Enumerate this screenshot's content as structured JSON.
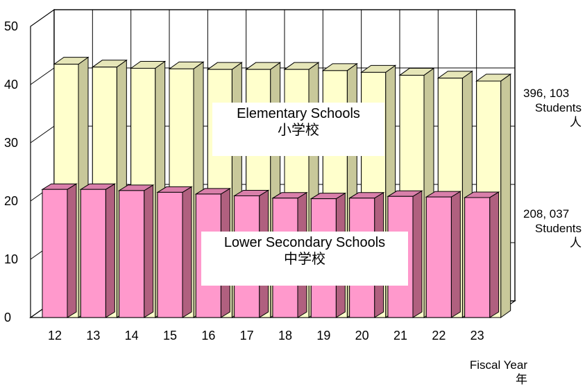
{
  "chart_data": {
    "type": "bar",
    "categories": [
      "12",
      "13",
      "14",
      "15",
      "16",
      "17",
      "18",
      "19",
      "20",
      "21",
      "22",
      "23"
    ],
    "series": [
      {
        "name": "Elementary Schools 小学校",
        "color": "#FFFFCC",
        "values": [
          43.5,
          43.0,
          42.8,
          42.7,
          42.6,
          42.6,
          42.6,
          42.4,
          42.1,
          41.6,
          41.1,
          40.6
        ]
      },
      {
        "name": "Lower Secondary Schools 中学校",
        "color": "#FF99CC",
        "values": [
          22.0,
          22.0,
          21.8,
          21.5,
          21.2,
          20.9,
          20.5,
          20.4,
          20.5,
          20.8,
          20.7,
          20.6
        ]
      }
    ],
    "ylim": [
      0,
      50
    ],
    "yticks": [
      "0",
      "10",
      "20",
      "30",
      "40",
      "50"
    ],
    "grid": true
  },
  "labels": {
    "elementary": {
      "en": "Elementary Schools",
      "ja": "小学校"
    },
    "secondary": {
      "en": "Lower Secondary Schools",
      "ja": "中学校"
    },
    "elementary_total": {
      "number": "396, 103",
      "unit": "Students",
      "unit_ja": "人"
    },
    "secondary_total": {
      "number": "208, 037",
      "unit": "Students",
      "unit_ja": "人"
    },
    "xaxis": {
      "en": "Fiscal Year",
      "ja": "年"
    }
  }
}
